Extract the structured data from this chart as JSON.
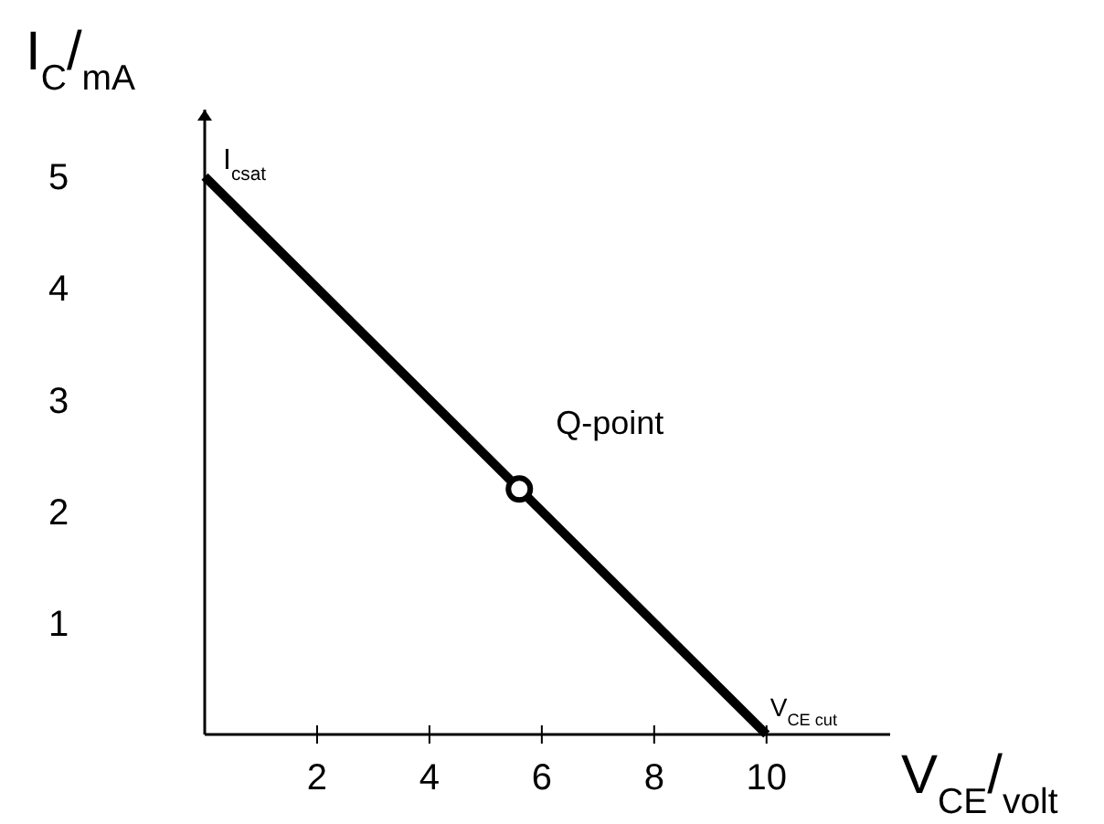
{
  "chart_data": {
    "type": "line",
    "xlabel": "V$_{CE}$/$_{volt}$",
    "ylabel": "I$_{C}$/$_{mA}$",
    "xlim": [
      0,
      12.2
    ],
    "ylim": [
      0,
      5.6
    ],
    "xticks": [
      2,
      4,
      6,
      8,
      10
    ],
    "yticks": [
      1,
      2,
      3,
      4,
      5
    ],
    "grid": false,
    "series": [
      {
        "color": "#000000",
        "x": [
          0,
          10
        ],
        "values": [
          5,
          0
        ]
      },
      {
        "type": "scatter",
        "color": "#000000",
        "x": [
          5.6
        ],
        "values": [
          2.2
        ],
        "marker": "circle"
      }
    ],
    "annotations": [
      {
        "text": "I$_{csat}$",
        "x": 0,
        "y": 5
      },
      {
        "text": "V$_{CE cut}$",
        "x": 10,
        "y": 0
      },
      {
        "text": "Q-point",
        "x": 5.6,
        "y": 2.2
      }
    ]
  }
}
